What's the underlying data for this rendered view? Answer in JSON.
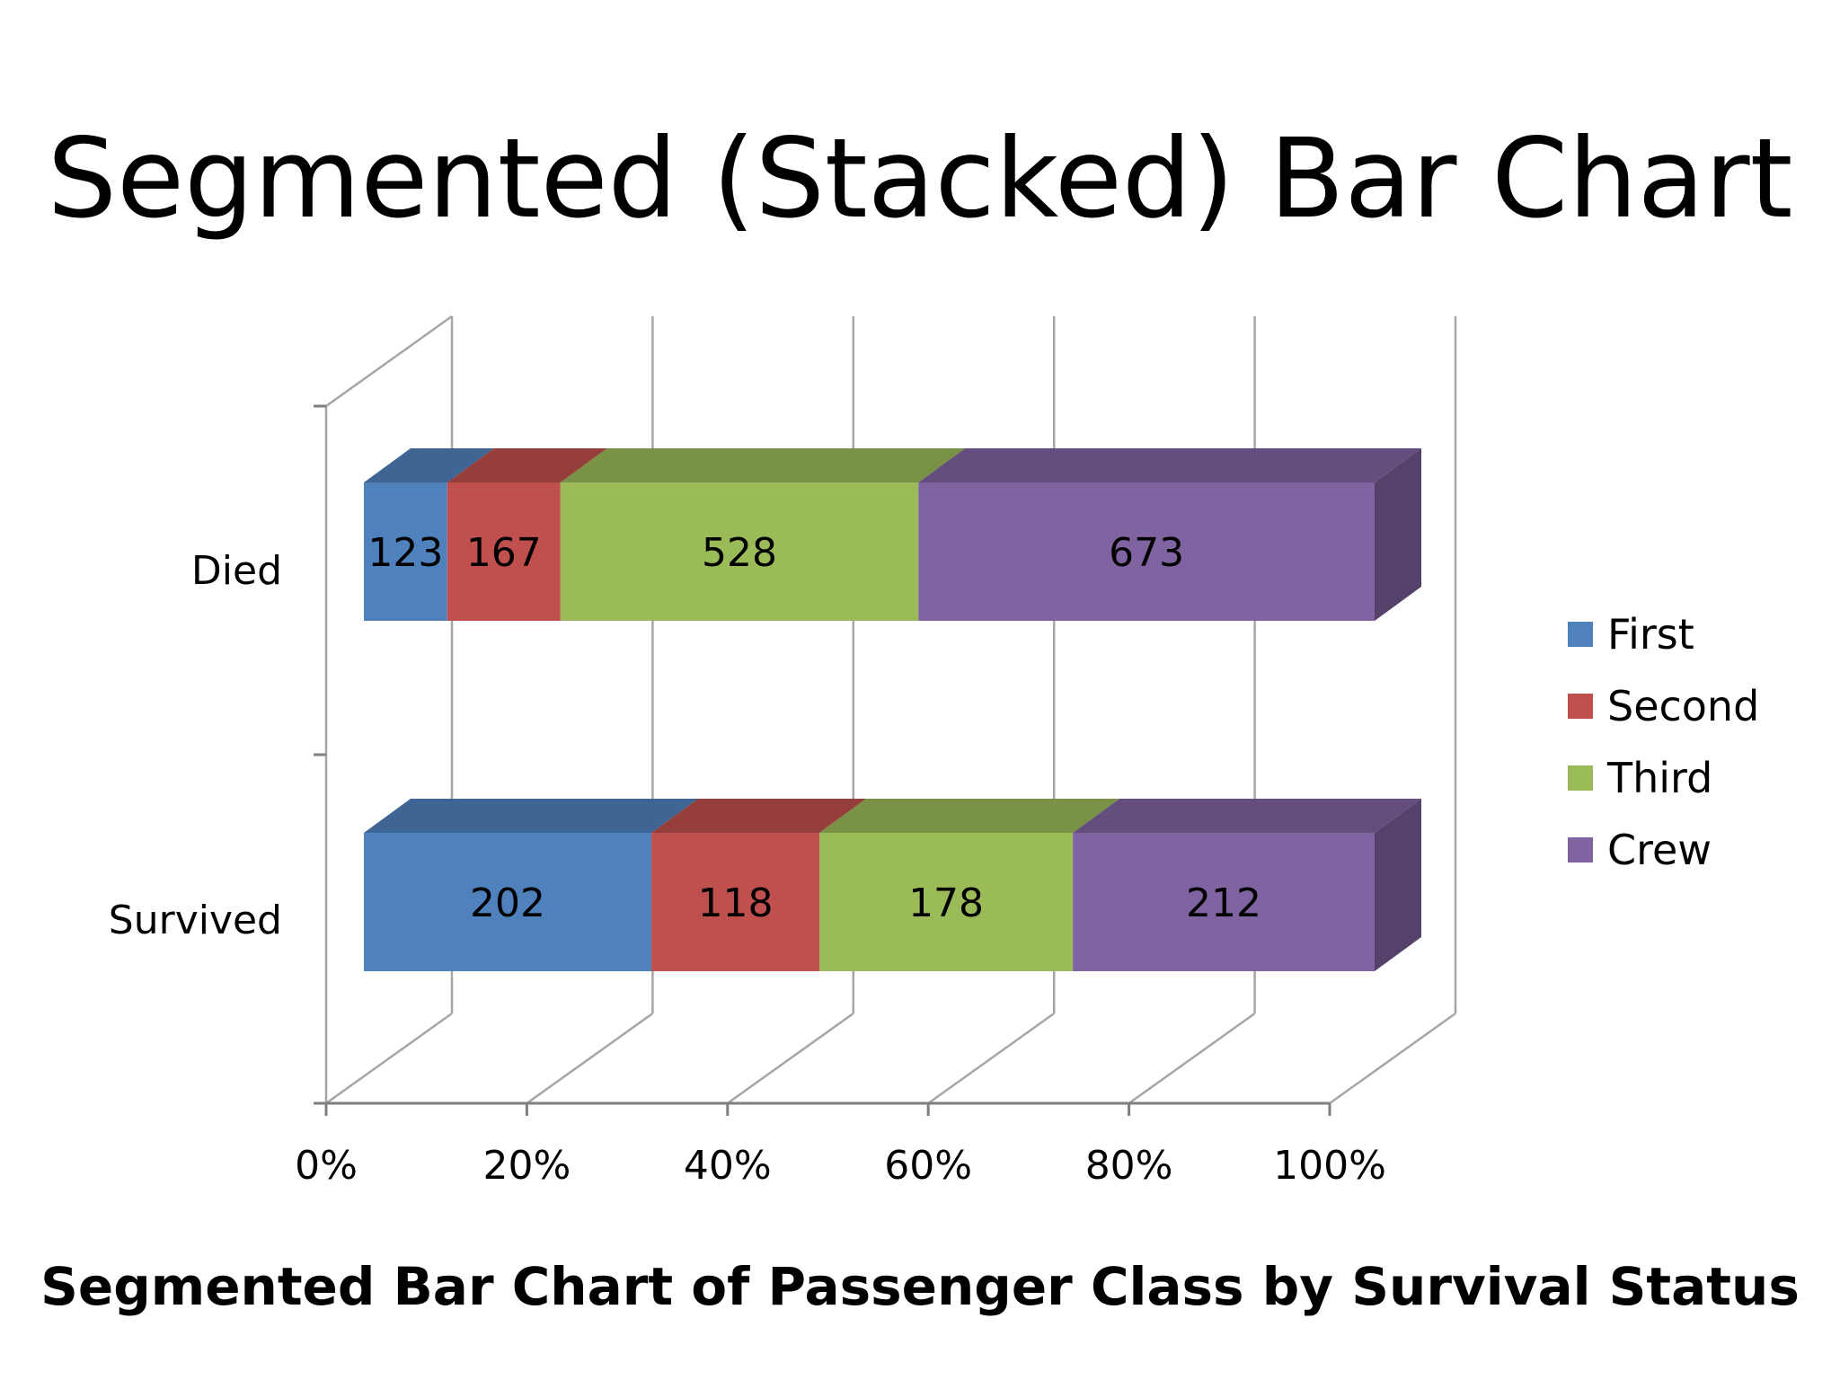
{
  "slide": {
    "title": "Segmented (Stacked) Bar Chart",
    "caption": "Segmented Bar Chart of Passenger Class by Survival Status"
  },
  "chart_data": {
    "type": "bar",
    "orientation": "horizontal",
    "stacking": "percent",
    "style": "3d",
    "categories": [
      "Died",
      "Survived"
    ],
    "series": [
      {
        "name": "First",
        "values": [
          123,
          202
        ],
        "color": "#4f81bd"
      },
      {
        "name": "Second",
        "values": [
          167,
          118
        ],
        "color": "#c0504d"
      },
      {
        "name": "Third",
        "values": [
          528,
          178
        ],
        "color": "#9bbb59"
      },
      {
        "name": "Crew",
        "values": [
          673,
          212
        ],
        "color": "#8064a2"
      }
    ],
    "x_ticks": [
      "0%",
      "20%",
      "40%",
      "60%",
      "80%",
      "100%"
    ],
    "xlim": [
      0,
      100
    ],
    "grid": true,
    "legend": "right"
  }
}
